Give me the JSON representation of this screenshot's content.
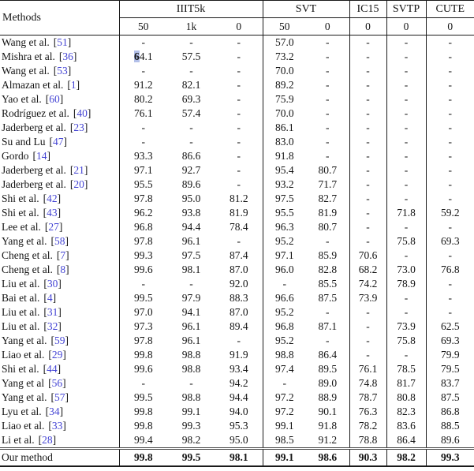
{
  "colors": {
    "citation": "#4444d4",
    "highlight": "#b3c0e9",
    "text": "#141414"
  },
  "table": {
    "methods_header": "Methods",
    "groups": [
      {
        "label": "IIIT5k",
        "subcols": [
          "50",
          "1k",
          "0"
        ]
      },
      {
        "label": "SVT",
        "subcols": [
          "50",
          "0"
        ]
      },
      {
        "label": "IC15",
        "subcols": [
          "0"
        ]
      },
      {
        "label": "SVTP",
        "subcols": [
          "0"
        ]
      },
      {
        "label": "CUTE",
        "subcols": [
          "0"
        ]
      }
    ],
    "rows": [
      {
        "method": "Wang et al.",
        "cite": "51",
        "values": [
          "-",
          "-",
          "-",
          "57.0",
          "-",
          "-",
          "-",
          "-"
        ]
      },
      {
        "method": "Mishra et al.",
        "cite": "36",
        "values": [
          "64.1",
          "57.5",
          "-",
          "73.2",
          "-",
          "-",
          "-",
          "-"
        ],
        "hl": {
          "col": 0,
          "len": 1
        }
      },
      {
        "method": "Wang et al.",
        "cite": "53",
        "values": [
          "-",
          "-",
          "-",
          "70.0",
          "-",
          "-",
          "-",
          "-"
        ]
      },
      {
        "method": "Almazan et al.",
        "cite": "1",
        "values": [
          "91.2",
          "82.1",
          "-",
          "89.2",
          "-",
          "-",
          "-",
          "-"
        ]
      },
      {
        "method": "Yao et al.",
        "cite": "60",
        "values": [
          "80.2",
          "69.3",
          "-",
          "75.9",
          "-",
          "-",
          "-",
          "-"
        ]
      },
      {
        "method": "Rodríguez et al.",
        "cite": "40",
        "values": [
          "76.1",
          "57.4",
          "-",
          "70.0",
          "-",
          "-",
          "-",
          "-"
        ]
      },
      {
        "method": "Jaderberg et al.",
        "cite": "23",
        "values": [
          "-",
          "-",
          "-",
          "86.1",
          "-",
          "-",
          "-",
          "-"
        ]
      },
      {
        "method": "Su and Lu",
        "cite": "47",
        "values": [
          "-",
          "-",
          "-",
          "83.0",
          "-",
          "-",
          "-",
          "-"
        ]
      },
      {
        "method": "Gordo",
        "cite": "14",
        "values": [
          "93.3",
          "86.6",
          "-",
          "91.8",
          "-",
          "-",
          "-",
          "-"
        ]
      },
      {
        "method": "Jaderberg et al.",
        "cite": "21",
        "values": [
          "97.1",
          "92.7",
          "-",
          "95.4",
          "80.7",
          "-",
          "-",
          "-"
        ]
      },
      {
        "method": "Jaderberg et al.",
        "cite": "20",
        "values": [
          "95.5",
          "89.6",
          "-",
          "93.2",
          "71.7",
          "-",
          "-",
          "-"
        ]
      },
      {
        "method": "Shi et al.",
        "cite": "42",
        "values": [
          "97.8",
          "95.0",
          "81.2",
          "97.5",
          "82.7",
          "-",
          "-",
          "-"
        ]
      },
      {
        "method": "Shi et al.",
        "cite": "43",
        "values": [
          "96.2",
          "93.8",
          "81.9",
          "95.5",
          "81.9",
          "-",
          "71.8",
          "59.2"
        ]
      },
      {
        "method": "Lee et al.",
        "cite": "27",
        "values": [
          "96.8",
          "94.4",
          "78.4",
          "96.3",
          "80.7",
          "-",
          "-",
          "-"
        ]
      },
      {
        "method": "Yang et al.",
        "cite": "58",
        "values": [
          "97.8",
          "96.1",
          "-",
          "95.2",
          "-",
          "-",
          "75.8",
          "69.3"
        ]
      },
      {
        "method": "Cheng et al.",
        "cite": "7",
        "values": [
          "99.3",
          "97.5",
          "87.4",
          "97.1",
          "85.9",
          "70.6",
          "-",
          "-"
        ]
      },
      {
        "method": "Cheng et al.",
        "cite": "8",
        "values": [
          "99.6",
          "98.1",
          "87.0",
          "96.0",
          "82.8",
          "68.2",
          "73.0",
          "76.8"
        ]
      },
      {
        "method": "Liu et al.",
        "cite": "30",
        "values": [
          "-",
          "-",
          "92.0",
          "-",
          "85.5",
          "74.2",
          "78.9",
          "-"
        ]
      },
      {
        "method": "Bai et al.",
        "cite": "4",
        "values": [
          "99.5",
          "97.9",
          "88.3",
          "96.6",
          "87.5",
          "73.9",
          "-",
          "-"
        ]
      },
      {
        "method": "Liu et al.",
        "cite": "31",
        "values": [
          "97.0",
          "94.1",
          "87.0",
          "95.2",
          "-",
          "-",
          "-",
          "-"
        ]
      },
      {
        "method": "Liu et al.",
        "cite": "32",
        "values": [
          "97.3",
          "96.1",
          "89.4",
          "96.8",
          "87.1",
          "-",
          "73.9",
          "62.5"
        ]
      },
      {
        "method": "Yang et al.",
        "cite": "59",
        "values": [
          "97.8",
          "96.1",
          "-",
          "95.2",
          "-",
          "-",
          "75.8",
          "69.3"
        ]
      },
      {
        "method": "Liao et al.",
        "cite": "29",
        "values": [
          "99.8",
          "98.8",
          "91.9",
          "98.8",
          "86.4",
          "-",
          "-",
          "79.9"
        ]
      },
      {
        "method": "Shi et al.",
        "cite": "44",
        "values": [
          "99.6",
          "98.8",
          "93.4",
          "97.4",
          "89.5",
          "76.1",
          "78.5",
          "79.5"
        ]
      },
      {
        "method": "Yang et al",
        "cite": "56",
        "values": [
          "-",
          "-",
          "94.2",
          "-",
          "89.0",
          "74.8",
          "81.7",
          "83.7"
        ]
      },
      {
        "method": "Yang et al.",
        "cite": "57",
        "values": [
          "99.5",
          "98.8",
          "94.4",
          "97.2",
          "88.9",
          "78.7",
          "80.8",
          "87.5"
        ]
      },
      {
        "method": "Lyu et al.",
        "cite": "34",
        "values": [
          "99.8",
          "99.1",
          "94.0",
          "97.2",
          "90.1",
          "76.3",
          "82.3",
          "86.8"
        ]
      },
      {
        "method": "Liao et al.",
        "cite": "33",
        "values": [
          "99.8",
          "99.3",
          "95.3",
          "99.1",
          "91.8",
          "78.2",
          "83.6",
          "88.5"
        ]
      },
      {
        "method": "Li et al.",
        "cite": "28",
        "values": [
          "99.4",
          "98.2",
          "95.0",
          "98.5",
          "91.2",
          "78.8",
          "86.4",
          "89.6"
        ]
      },
      {
        "method": "Our method",
        "final": true,
        "values": [
          "99.8",
          "99.5",
          "98.1",
          "99.1",
          "98.6",
          "90.3",
          "98.2",
          "99.3"
        ]
      }
    ]
  }
}
